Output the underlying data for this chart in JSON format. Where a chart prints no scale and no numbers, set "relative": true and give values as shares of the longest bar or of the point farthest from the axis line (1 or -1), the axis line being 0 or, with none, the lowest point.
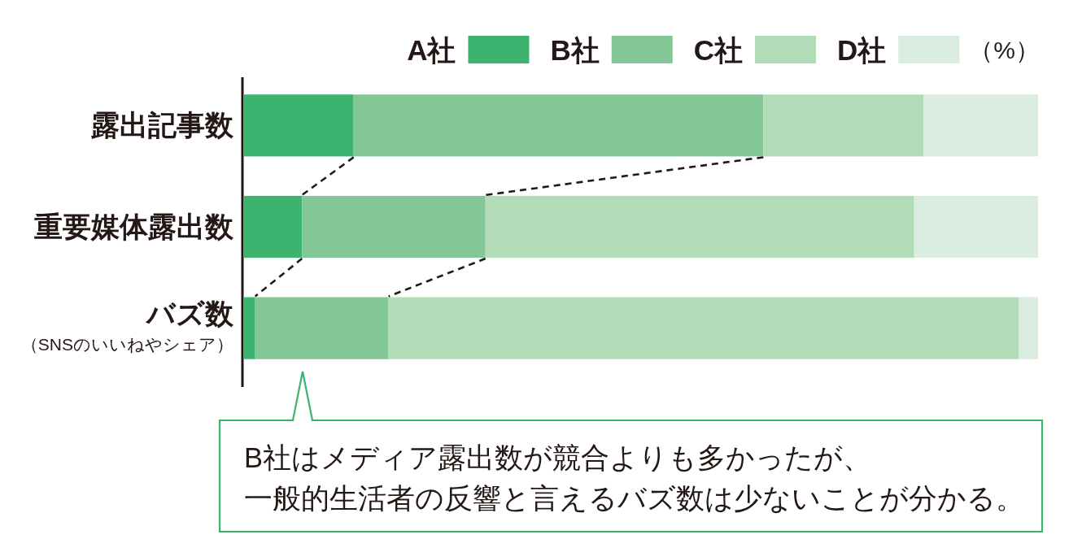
{
  "chart_data": {
    "type": "bar",
    "orientation": "horizontal",
    "stacked": true,
    "relative": true,
    "categories": [
      "露出記事数",
      "重要媒体露出数",
      "バズ数（SNSのいいねやシェア）"
    ],
    "series": [
      {
        "name": "A社",
        "color": "#3db370",
        "values": [
          0.138,
          0.073,
          0.014
        ]
      },
      {
        "name": "B社",
        "color": "#82c795",
        "values": [
          0.516,
          0.231,
          0.168
        ]
      },
      {
        "name": "C社",
        "color": "#b2dbb8",
        "values": [
          0.202,
          0.54,
          0.794
        ]
      },
      {
        "name": "D社",
        "color": "#dbede0",
        "values": [
          0.144,
          0.156,
          0.024
        ]
      }
    ],
    "legend": "top right",
    "legend_title": "（%）",
    "annotations": [
      "B社はメディア露出数が競合よりも多かったが、一般的生活者の反響と言えるバズ数は少ないことが分かる。"
    ]
  }
}
